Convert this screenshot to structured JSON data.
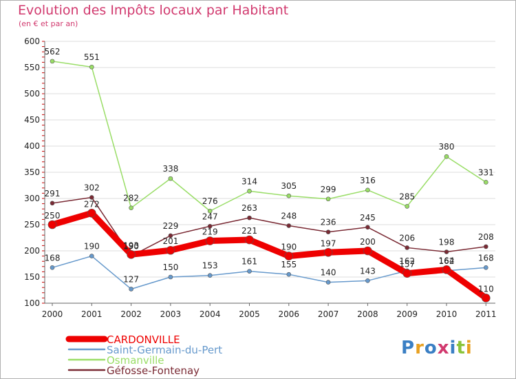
{
  "title": "Evolution des Impôts locaux par Habitant",
  "subtitle": "(en € et par an)",
  "logo": "Proxiti",
  "chart_data": {
    "type": "line",
    "title": "Evolution des Impôts locaux par Habitant",
    "subtitle": "(en € et par an)",
    "x": [
      "2000",
      "2001",
      "2002",
      "2003",
      "2004",
      "2005",
      "2006",
      "2007",
      "2008",
      "2009",
      "2010",
      "2011"
    ],
    "ylim": [
      100,
      600
    ],
    "yticks": [
      100,
      150,
      200,
      250,
      300,
      350,
      400,
      450,
      500,
      550,
      600
    ],
    "grid": true,
    "legend_position": "bottom-left",
    "series": [
      {
        "name": "CARDONVILLE",
        "color": "#ee0000",
        "width": 9,
        "label_dy": -9,
        "values": [
          250,
          272,
          193,
          201,
          219,
          221,
          190,
          197,
          200,
          157,
          164,
          110
        ]
      },
      {
        "name": "Saint-Germain-du-Pert",
        "color": "#6699cc",
        "width": 1.5,
        "label_dy": -10,
        "values": [
          168,
          190,
          127,
          150,
          153,
          161,
          155,
          140,
          143,
          162,
          162,
          168
        ]
      },
      {
        "name": "Osmanville",
        "color": "#99dd66",
        "width": 1.5,
        "label_dy": -10,
        "values": [
          562,
          551,
          282,
          338,
          276,
          314,
          305,
          299,
          316,
          285,
          380,
          331
        ]
      },
      {
        "name": "Géfosse-Fontenay",
        "color": "#7a2a34",
        "width": 1.5,
        "label_dy": -10,
        "values": [
          291,
          302,
          190,
          229,
          247,
          263,
          248,
          236,
          245,
          206,
          198,
          208
        ]
      }
    ]
  }
}
